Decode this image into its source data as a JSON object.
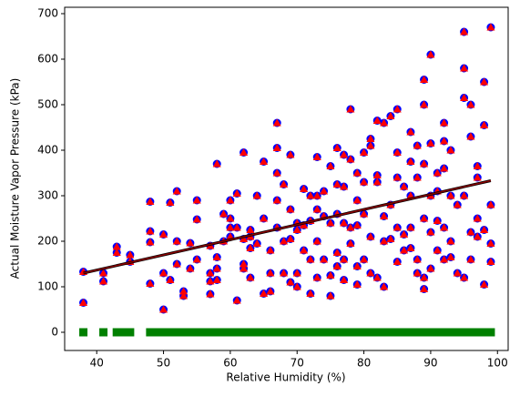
{
  "chart_data": {
    "type": "scatter",
    "xlabel": "Relative Humidity (%)",
    "ylabel": "Actual Moisture Vapor Pressure (kPa)",
    "xlim": [
      35.2,
      101.6
    ],
    "ylim": [
      -40,
      714
    ],
    "xticks": [
      40,
      50,
      60,
      70,
      80,
      90,
      100
    ],
    "yticks": [
      0,
      100,
      200,
      300,
      400,
      500,
      600,
      700
    ],
    "series": [
      {
        "marker": "circle",
        "color": "#0000ff",
        "overlay_marker": "triangle",
        "overlay_color": "#ff0000",
        "x": [
          38,
          38,
          41,
          41,
          43,
          43,
          45,
          45,
          48,
          48,
          48,
          48,
          50,
          50,
          50,
          51,
          51,
          52,
          52,
          52,
          53,
          53,
          54,
          54,
          55,
          55,
          55,
          57,
          57,
          57,
          57,
          58,
          58,
          58,
          58,
          59,
          59,
          60,
          60,
          60,
          60,
          61,
          61,
          61,
          62,
          62,
          62,
          62,
          63,
          63,
          63,
          63,
          64,
          64,
          65,
          65,
          65,
          66,
          66,
          66,
          67,
          67,
          67,
          67,
          67,
          68,
          68,
          68,
          69,
          69,
          69,
          69,
          70,
          70,
          70,
          70,
          71,
          71,
          71,
          72,
          72,
          72,
          72,
          73,
          73,
          73,
          73,
          73,
          74,
          74,
          74,
          75,
          75,
          75,
          75,
          76,
          76,
          76,
          76,
          76,
          77,
          77,
          77,
          77,
          77,
          78,
          78,
          78,
          78,
          79,
          79,
          79,
          79,
          79,
          80,
          80,
          80,
          80,
          81,
          81,
          81,
          81,
          82,
          82,
          82,
          82,
          83,
          83,
          83,
          83,
          84,
          84,
          84,
          85,
          85,
          85,
          85,
          85,
          86,
          86,
          86,
          87,
          87,
          87,
          87,
          87,
          88,
          88,
          88,
          88,
          89,
          89,
          89,
          89,
          89,
          89,
          90,
          90,
          90,
          90,
          90,
          91,
          91,
          91,
          91,
          92,
          92,
          92,
          92,
          92,
          93,
          93,
          93,
          93,
          94,
          94,
          95,
          95,
          95,
          95,
          95,
          96,
          96,
          96,
          96,
          97,
          97,
          97,
          97,
          98,
          98,
          98,
          98,
          99,
          99,
          99,
          99
        ],
        "values": [
          133,
          65,
          130,
          112,
          188,
          175,
          170,
          155,
          287,
          107,
          222,
          198,
          215,
          50,
          130,
          285,
          115,
          310,
          200,
          150,
          90,
          80,
          196,
          140,
          290,
          248,
          160,
          190,
          130,
          112,
          84,
          370,
          165,
          140,
          115,
          260,
          200,
          290,
          250,
          230,
          210,
          305,
          70,
          230,
          395,
          150,
          140,
          205,
          225,
          210,
          185,
          120,
          300,
          195,
          375,
          250,
          85,
          90,
          180,
          130,
          460,
          405,
          350,
          290,
          230,
          325,
          200,
          130,
          390,
          270,
          205,
          110,
          240,
          225,
          130,
          100,
          315,
          235,
          180,
          300,
          245,
          160,
          85,
          385,
          300,
          270,
          200,
          120,
          310,
          255,
          160,
          365,
          240,
          125,
          80,
          405,
          325,
          260,
          175,
          145,
          390,
          320,
          240,
          160,
          115,
          490,
          380,
          230,
          195,
          350,
          290,
          235,
          145,
          105,
          395,
          330,
          260,
          160,
          425,
          410,
          210,
          130,
          465,
          345,
          330,
          120,
          460,
          255,
          200,
          100,
          475,
          280,
          205,
          490,
          395,
          340,
          230,
          155,
          320,
          215,
          180,
          440,
          375,
          300,
          230,
          185,
          410,
          340,
          160,
          130,
          500,
          555,
          370,
          250,
          120,
          95,
          610,
          415,
          300,
          220,
          140,
          350,
          310,
          245,
          180,
          460,
          420,
          360,
          230,
          160,
          400,
          300,
          200,
          165,
          130,
          280,
          660,
          580,
          515,
          300,
          120,
          500,
          430,
          220,
          160,
          365,
          340,
          250,
          210,
          550,
          455,
          225,
          105,
          670,
          280,
          195,
          155
        ]
      },
      {
        "marker": "square",
        "color": "#008000",
        "x": [
          38,
          41,
          43,
          44,
          45,
          48,
          49,
          50,
          51,
          52,
          53,
          54,
          55,
          56,
          57,
          58,
          59,
          60,
          61,
          62,
          63,
          64,
          65,
          66,
          67,
          68,
          69,
          70,
          71,
          72,
          73,
          74,
          75,
          76,
          77,
          78,
          79,
          80,
          81,
          82,
          83,
          84,
          85,
          86,
          87,
          88,
          89,
          90,
          91,
          92,
          93,
          94,
          95,
          96,
          97,
          98,
          99
        ],
        "values": [
          0,
          0,
          0,
          0,
          0,
          0,
          0,
          0,
          0,
          0,
          0,
          0,
          0,
          0,
          0,
          0,
          0,
          0,
          0,
          0,
          0,
          0,
          0,
          0,
          0,
          0,
          0,
          0,
          0,
          0,
          0,
          0,
          0,
          0,
          0,
          0,
          0,
          0,
          0,
          0,
          0,
          0,
          0,
          0,
          0,
          0,
          0,
          0,
          0,
          0,
          0,
          0,
          0,
          0,
          0,
          0,
          0
        ]
      },
      {
        "marker": "line",
        "color": "#8b0000",
        "under_color": "#000000",
        "x": [
          38,
          99
        ],
        "values": [
          130,
          333
        ]
      }
    ]
  }
}
